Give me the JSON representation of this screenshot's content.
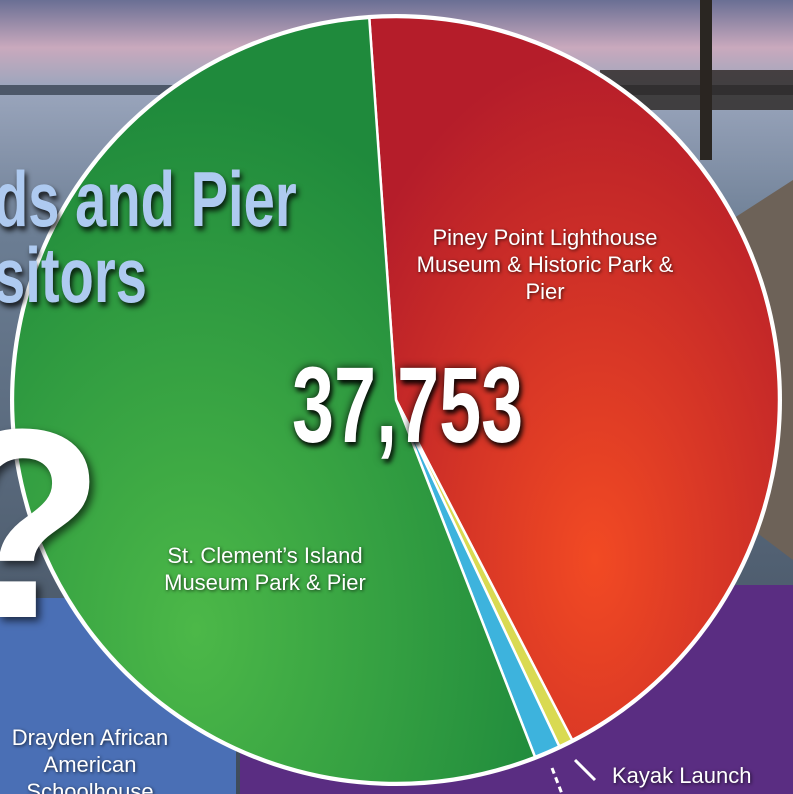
{
  "background_text": {
    "title_lines": [
      "ds and Pier",
      "sitors"
    ],
    "mark": "?",
    "box_left": "Drayden African American Schoolhouse"
  },
  "chart_data": {
    "type": "pie",
    "total_label": "37,753",
    "categories": [
      "Piney Point Lighthouse Museum & Historic Park & Pier",
      "Kayak Launch",
      null,
      "St. Clement’s Island Museum Park & Pier"
    ],
    "values": [
      43.5,
      0.6,
      1.1,
      54.8
    ],
    "colors": [
      "#cc2a26",
      "#d9da52",
      "#3db3dd",
      "#2f9c45"
    ]
  }
}
